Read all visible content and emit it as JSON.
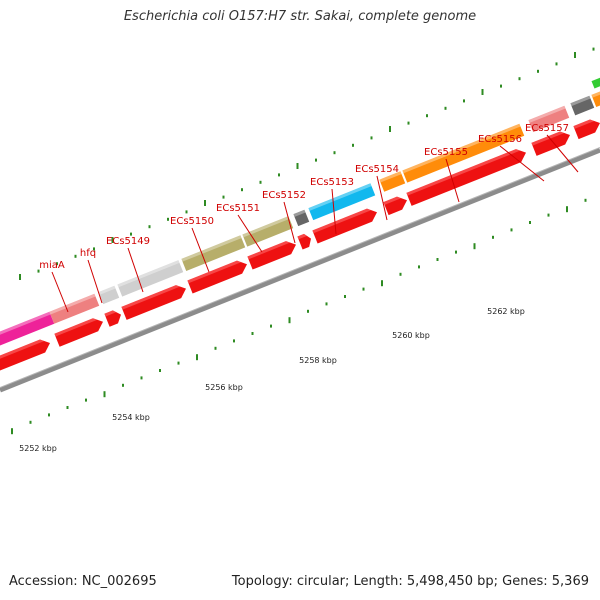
{
  "title": "Escherichia coli O157:H7 str. Sakai, complete genome",
  "footer": {
    "accession": "Accession: NC_002695",
    "summary": "Topology: circular; Length: 5,498,450 bp; Genes: 5,369"
  },
  "colors": {
    "cds": "#ee1111",
    "label": "#d00000",
    "backbone": "#8c8c8c",
    "tick": "#2e8b22",
    "pink": "#ee2299",
    "salmon": "#ee8080",
    "light_gray": "#cfcfcf",
    "olive": "#b7ae6a",
    "dark_gray": "#666666",
    "cyan": "#11b8ee",
    "orange": "#ff8c0a",
    "green": "#33cc33"
  },
  "gene_labels": [
    {
      "name": "miaA"
    },
    {
      "name": "hfq"
    },
    {
      "name": "ECs5149"
    },
    {
      "name": "ECs5150"
    },
    {
      "name": "ECs5151"
    },
    {
      "name": "ECs5152"
    },
    {
      "name": "ECs5153"
    },
    {
      "name": "ECs5154"
    },
    {
      "name": "ECs5155"
    },
    {
      "name": "ECs5156"
    },
    {
      "name": "ECs5157"
    }
  ],
  "scale_labels": [
    "5252 kbp",
    "5254 kbp",
    "5256 kbp",
    "5258 kbp",
    "5260 kbp",
    "5262 kbp"
  ]
}
